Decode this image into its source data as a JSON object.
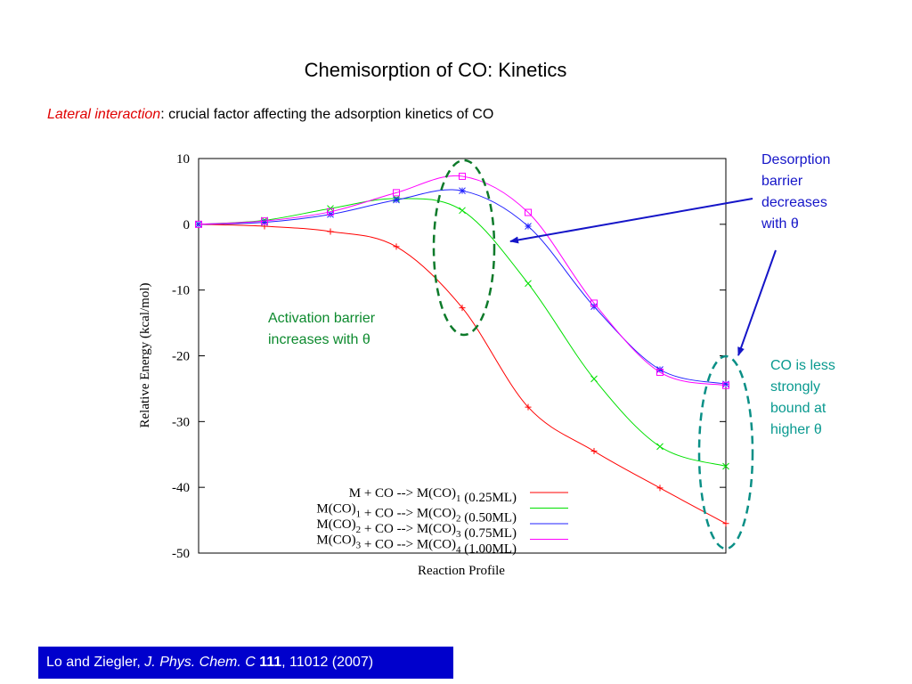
{
  "title": "Chemisorption of CO: Kinetics",
  "subtitle": {
    "highlight": "Lateral interaction",
    "rest": ": crucial factor affecting the adsorption kinetics of CO"
  },
  "annotations": {
    "desorption": [
      "Desorption",
      "barrier",
      "decreases",
      "with θ"
    ],
    "activation": [
      "Activation barrier",
      "increases with θ"
    ],
    "bound": [
      "CO is less",
      "strongly",
      "bound at",
      "higher θ"
    ]
  },
  "citation": {
    "authors": "Lo and Ziegler, ",
    "journal": "J. Phys. Chem. C",
    "volume": " 111",
    "pages": ", 11012 (2007)"
  },
  "colors": {
    "series": [
      "#ff0000",
      "#00e000",
      "#2020ff",
      "#ff00ff"
    ],
    "annotation_blue": "#1515c8",
    "annotation_green": "#0d8a2e",
    "annotation_teal": "#0a9a90",
    "citation_bg": "#0000cc"
  },
  "chart_data": {
    "type": "line",
    "xlabel": "Reaction Profile",
    "ylabel": "Relative Energy (kcal/mol)",
    "ylim": [
      -50,
      10
    ],
    "yticks": [
      "10",
      "0",
      "-10",
      "-20",
      "-30",
      "-40",
      "-50"
    ],
    "x": [
      0,
      1,
      2,
      3,
      4,
      5,
      6,
      7,
      8
    ],
    "grid": false,
    "legend_position": "bottom-center",
    "series": [
      {
        "name_parts": [
          [
            "M + CO --> M(CO)",
            ""
          ],
          [
            "1",
            "sub"
          ],
          [
            " (0.25ML)",
            ""
          ]
        ],
        "marker": "+",
        "values": [
          0,
          -0.3,
          -1.1,
          -3.4,
          -12.7,
          -27.8,
          -34.5,
          -40.1,
          -45.5
        ]
      },
      {
        "name_parts": [
          [
            "M(CO)",
            ""
          ],
          [
            "1",
            "sub"
          ],
          [
            " + CO --> M(CO)",
            ""
          ],
          [
            "2",
            "sub"
          ],
          [
            " (0.50ML)",
            ""
          ]
        ],
        "marker": "x",
        "values": [
          0,
          0.6,
          2.4,
          3.9,
          2.1,
          -9.0,
          -23.5,
          -33.8,
          -36.8
        ]
      },
      {
        "name_parts": [
          [
            "M(CO)",
            ""
          ],
          [
            "2",
            "sub"
          ],
          [
            " + CO --> M(CO)",
            ""
          ],
          [
            "3",
            "sub"
          ],
          [
            " (0.75ML)",
            ""
          ]
        ],
        "marker": "*",
        "values": [
          0,
          0.3,
          1.5,
          3.7,
          5.1,
          -0.3,
          -12.5,
          -22.1,
          -24.3
        ]
      },
      {
        "name_parts": [
          [
            "M(CO)",
            ""
          ],
          [
            "3",
            "sub"
          ],
          [
            " + CO --> M(CO)",
            ""
          ],
          [
            "4",
            "sub"
          ],
          [
            " (1.00ML)",
            ""
          ]
        ],
        "marker": "square",
        "values": [
          0,
          0.5,
          1.9,
          4.8,
          7.3,
          1.8,
          -12.0,
          -22.5,
          -24.5
        ]
      }
    ]
  }
}
